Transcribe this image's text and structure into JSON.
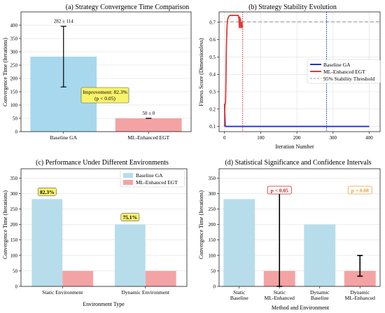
{
  "chart_data": [
    {
      "id": "a",
      "type": "bar",
      "title": "(a) Strategy Convergence Time Comparison",
      "xlabel": "",
      "ylabel": "Convergence Time (Iterations)",
      "ylim": [
        0,
        450
      ],
      "yticks": [
        0,
        50,
        100,
        150,
        200,
        250,
        300,
        350,
        400
      ],
      "categories": [
        "Baseline GA",
        "ML-Enhanced EGT"
      ],
      "values": [
        282,
        50
      ],
      "errors": [
        114,
        0
      ],
      "value_labels": [
        "282 ± 114",
        "50 ± 0"
      ],
      "colors": [
        "#a8d8ee",
        "#f3a3a3"
      ],
      "annotation": [
        "Improvement: 82.3%",
        "(p < 0.05)"
      ],
      "grid": true
    },
    {
      "id": "b",
      "type": "line",
      "title": "(b) Strategy Stability Evolution",
      "xlabel": "Iteration Number",
      "ylabel": "Fitness Score (Dimensionless)",
      "xlim": [
        -15,
        430
      ],
      "ylim": [
        0.07,
        0.76
      ],
      "xticks": [
        0,
        100,
        200,
        300,
        400
      ],
      "yticks": [
        0.1,
        0.2,
        0.3,
        0.4,
        0.5,
        0.6,
        0.7
      ],
      "series": [
        {
          "name": "Baseline GA",
          "color": "#2233cc",
          "x": [
            0,
            2,
            400
          ],
          "y": [
            0.23,
            0.1,
            0.1
          ]
        },
        {
          "name": "ML-Enhanced EGT",
          "color": "#e53935",
          "x": [
            0,
            1,
            2,
            3,
            4,
            5,
            7,
            9,
            12,
            15,
            20,
            25,
            30,
            35,
            38,
            40,
            41,
            42,
            43,
            44,
            45,
            46,
            47,
            48,
            49,
            50
          ],
          "y": [
            0.1,
            0.22,
            0.23,
            0.25,
            0.38,
            0.55,
            0.68,
            0.72,
            0.735,
            0.74,
            0.74,
            0.74,
            0.74,
            0.74,
            0.74,
            0.72,
            0.67,
            0.73,
            0.68,
            0.72,
            0.67,
            0.69,
            0.67,
            0.7,
            0.67,
            0.68
          ]
        }
      ],
      "reference_lines": [
        {
          "name": "95% Stability Threshold",
          "axis": "y",
          "value": 0.703,
          "color": "#999999",
          "style": "dashed"
        },
        {
          "axis": "x",
          "value": 50,
          "color": "#e53935",
          "style": "dotted"
        },
        {
          "axis": "x",
          "value": 282,
          "color": "#2233cc",
          "style": "dotted"
        }
      ],
      "legend_position": "center-right",
      "grid": true
    },
    {
      "id": "c",
      "type": "bar",
      "title": "(c) Performance Under Different Environments",
      "xlabel": "Environment Type",
      "ylabel": "Convergence Time (Iterations)",
      "ylim": [
        0,
        380
      ],
      "yticks": [
        0,
        50,
        100,
        150,
        200,
        250,
        300,
        350
      ],
      "categories": [
        "Static Environment",
        "Dynamic Environment"
      ],
      "series": [
        {
          "name": "Baseline GA",
          "color": "#b7dcea",
          "values": [
            282,
            200
          ]
        },
        {
          "name": "ML-Enhanced EGT",
          "color": "#f3a3a3",
          "values": [
            50,
            50
          ]
        }
      ],
      "annotations": [
        "82.3%",
        "75.1%"
      ],
      "legend_position": "top-right",
      "grid": true
    },
    {
      "id": "d",
      "type": "bar",
      "title": "(d) Statistical Significance and Confidence Intervals",
      "xlabel": "Method and Environment",
      "ylabel": "Convergence Time (Iterations)",
      "ylim": [
        0,
        380
      ],
      "yticks": [
        0,
        50,
        100,
        150,
        200,
        250,
        300,
        350
      ],
      "categories": [
        [
          "Static",
          "Baseline"
        ],
        [
          "Static",
          "ML-Enhanced"
        ],
        [
          "Dynamic",
          "Baseline"
        ],
        [
          "Dynamic",
          "ML-Enhanced"
        ]
      ],
      "values": [
        282,
        50,
        200,
        50
      ],
      "colors": [
        "#b7dcea",
        "#f3a3a3",
        "#b7dcea",
        "#f3a3a3"
      ],
      "error_intervals": [
        null,
        [
          0,
          310
        ],
        null,
        [
          33,
          100
        ]
      ],
      "annotations": [
        {
          "text": "p < 0.05",
          "bar": 1,
          "color": "#cc2222"
        },
        {
          "text": "p = 0.08",
          "bar": 3,
          "color": "#e8a23a"
        }
      ],
      "grid": true
    }
  ]
}
